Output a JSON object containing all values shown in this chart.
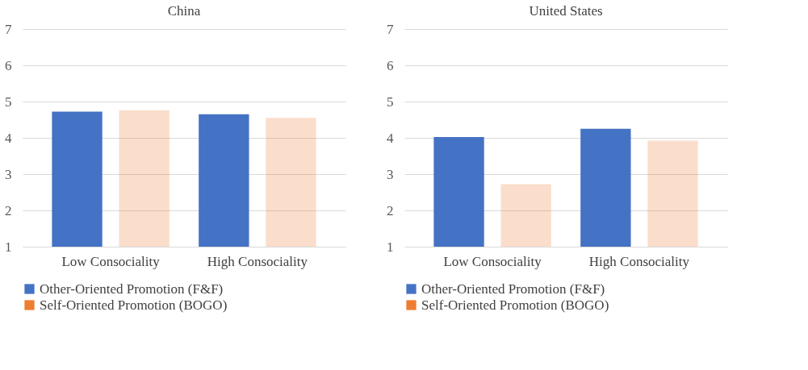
{
  "chart_data": [
    {
      "type": "bar",
      "title": "China",
      "categories": [
        "Low Consociality",
        "High Consociality"
      ],
      "series": [
        {
          "name": "Other-Oriented Promotion (F&F)",
          "color": "#4472c4",
          "values": [
            4.72,
            4.65
          ]
        },
        {
          "name": "Self-Oriented Promotion (BOGO)",
          "color": "#ed7d31",
          "values": [
            4.76,
            4.55
          ]
        }
      ],
      "ylim": [
        1,
        7
      ],
      "yticks": [
        1,
        2,
        3,
        4,
        5,
        6,
        7
      ],
      "grid": "y",
      "legend": "bottom"
    },
    {
      "type": "bar",
      "title": "United States",
      "categories": [
        "Low Consociality",
        "High Consociality"
      ],
      "series": [
        {
          "name": "Other-Oriented Promotion (F&F)",
          "color": "#4472c4",
          "values": [
            4.02,
            4.25
          ]
        },
        {
          "name": "Self-Oriented Promotion (BOGO)",
          "color": "#ed7d31",
          "values": [
            2.72,
            3.92
          ]
        }
      ],
      "ylim": [
        1,
        7
      ],
      "yticks": [
        1,
        2,
        3,
        4,
        5,
        6,
        7
      ],
      "grid": "y",
      "legend": "bottom"
    }
  ]
}
